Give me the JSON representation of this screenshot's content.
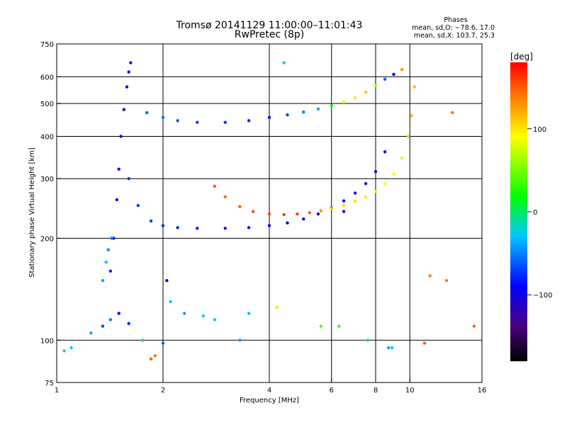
{
  "chart_data": {
    "type": "scatter",
    "title": "Tromsø 20141129 11:00:00–11:01:43",
    "subtitle": "RwPretec (8p)",
    "info": {
      "heading": "Phases",
      "line1": "mean, sd,O: −78.6, 17.0",
      "line2": "mean, sd,X: 103.7, 25.3"
    },
    "xlabel": "Frequency [MHz]",
    "ylabel": "Stationary phase Virtual Height [km]",
    "x_scale": "log",
    "y_scale": "log",
    "xlim": [
      1,
      16
    ],
    "ylim": [
      75,
      750
    ],
    "x_ticks": [
      1,
      2,
      4,
      6,
      8,
      10,
      16
    ],
    "x_tick_labels": [
      "1",
      "2",
      "4",
      "6",
      "8",
      "10",
      "16"
    ],
    "y_ticks": [
      75,
      100,
      200,
      300,
      400,
      500,
      600,
      750
    ],
    "y_tick_labels": [
      "75",
      "100",
      "200",
      "300",
      "400",
      "500",
      "600",
      "750"
    ],
    "grid": true,
    "colorbar": {
      "label": "[deg]",
      "range": [
        -180,
        180
      ],
      "ticks": [
        100,
        0,
        -100
      ],
      "tick_labels": [
        "100",
        "0",
        "−100"
      ],
      "colormap": "rainbow"
    },
    "series": [
      {
        "x": [
          1.42,
          1.45,
          1.48,
          1.5,
          1.52,
          1.55,
          1.58,
          1.6,
          1.62
        ],
        "y": [
          160,
          200,
          260,
          320,
          400,
          480,
          560,
          620,
          660
        ],
        "phase": [
          -80,
          -85,
          -90,
          -95,
          -92,
          -88,
          -90,
          -95,
          -85
        ]
      },
      {
        "x": [
          1.35,
          1.38,
          1.4,
          1.43
        ],
        "y": [
          150,
          170,
          185,
          200
        ],
        "phase": [
          -40,
          -30,
          -45,
          -50
        ]
      },
      {
        "x": [
          1.6,
          1.7,
          1.85,
          2.0,
          2.2,
          2.5,
          3.0,
          3.5,
          4.0,
          4.5,
          5.0,
          5.5,
          6.0,
          6.5,
          7.0,
          7.5,
          8.0,
          8.5
        ],
        "y": [
          300,
          250,
          225,
          218,
          215,
          214,
          214,
          215,
          218,
          222,
          228,
          236,
          246,
          258,
          272,
          290,
          315,
          360
        ],
        "phase": [
          -75,
          -70,
          -72,
          -78,
          -80,
          -82,
          -85,
          -88,
          -92,
          -95,
          -95,
          -98,
          -100,
          -100,
          -102,
          -105,
          -108,
          -110
        ]
      },
      {
        "x": [
          2.8,
          3.0,
          3.3,
          3.6,
          4.0,
          4.4,
          4.8,
          5.2,
          5.6,
          6.0,
          6.5,
          7.0,
          7.5,
          8.0,
          8.5,
          9.0,
          9.5,
          9.9,
          10.1,
          10.3
        ],
        "y": [
          285,
          265,
          248,
          240,
          236,
          235,
          236,
          238,
          241,
          245,
          250,
          257,
          265,
          275,
          290,
          310,
          345,
          400,
          460,
          560
        ],
        "phase": [
          150,
          145,
          148,
          152,
          155,
          160,
          158,
          150,
          130,
          110,
          105,
          100,
          98,
          95,
          90,
          88,
          80,
          110,
          120,
          115
        ]
      },
      {
        "x": [
          1.8,
          2.0,
          2.2,
          2.5,
          3.0,
          3.5,
          4.0,
          4.5,
          5.0,
          5.5,
          6.0,
          6.5,
          7.0,
          7.5,
          8.0,
          8.5,
          9.0,
          9.5
        ],
        "y": [
          470,
          455,
          445,
          440,
          440,
          445,
          455,
          463,
          472,
          482,
          493,
          505,
          520,
          540,
          565,
          590,
          610,
          630
        ],
        "phase": [
          -60,
          -58,
          -65,
          -70,
          -75,
          -80,
          -85,
          -70,
          -50,
          -40,
          20,
          80,
          100,
          110,
          60,
          -60,
          -90,
          130
        ]
      },
      {
        "x": [
          1.05,
          1.1,
          1.25,
          1.35,
          1.42,
          1.5,
          1.6,
          1.75,
          1.85,
          1.9,
          2.0,
          2.05,
          2.1,
          2.3,
          2.6,
          2.8,
          3.3,
          3.5,
          4.2,
          5.6,
          6.3,
          7.6,
          8.7,
          8.9,
          11.0,
          11.4,
          12.7,
          13.2,
          15.2,
          6.5,
          4.4
        ],
        "y": [
          93,
          95,
          105,
          110,
          115,
          120,
          112,
          100,
          88,
          90,
          98,
          150,
          130,
          120,
          118,
          115,
          100,
          120,
          125,
          110,
          110,
          100,
          95,
          95,
          98,
          155,
          150,
          470,
          110,
          240,
          660
        ],
        "phase": [
          -20,
          -30,
          -40,
          -70,
          -50,
          -90,
          -80,
          -20,
          150,
          140,
          -60,
          -90,
          -30,
          -40,
          -30,
          -20,
          -40,
          -30,
          100,
          40,
          30,
          -10,
          -40,
          -30,
          150,
          140,
          140,
          140,
          150,
          -100,
          -20
        ]
      }
    ]
  }
}
